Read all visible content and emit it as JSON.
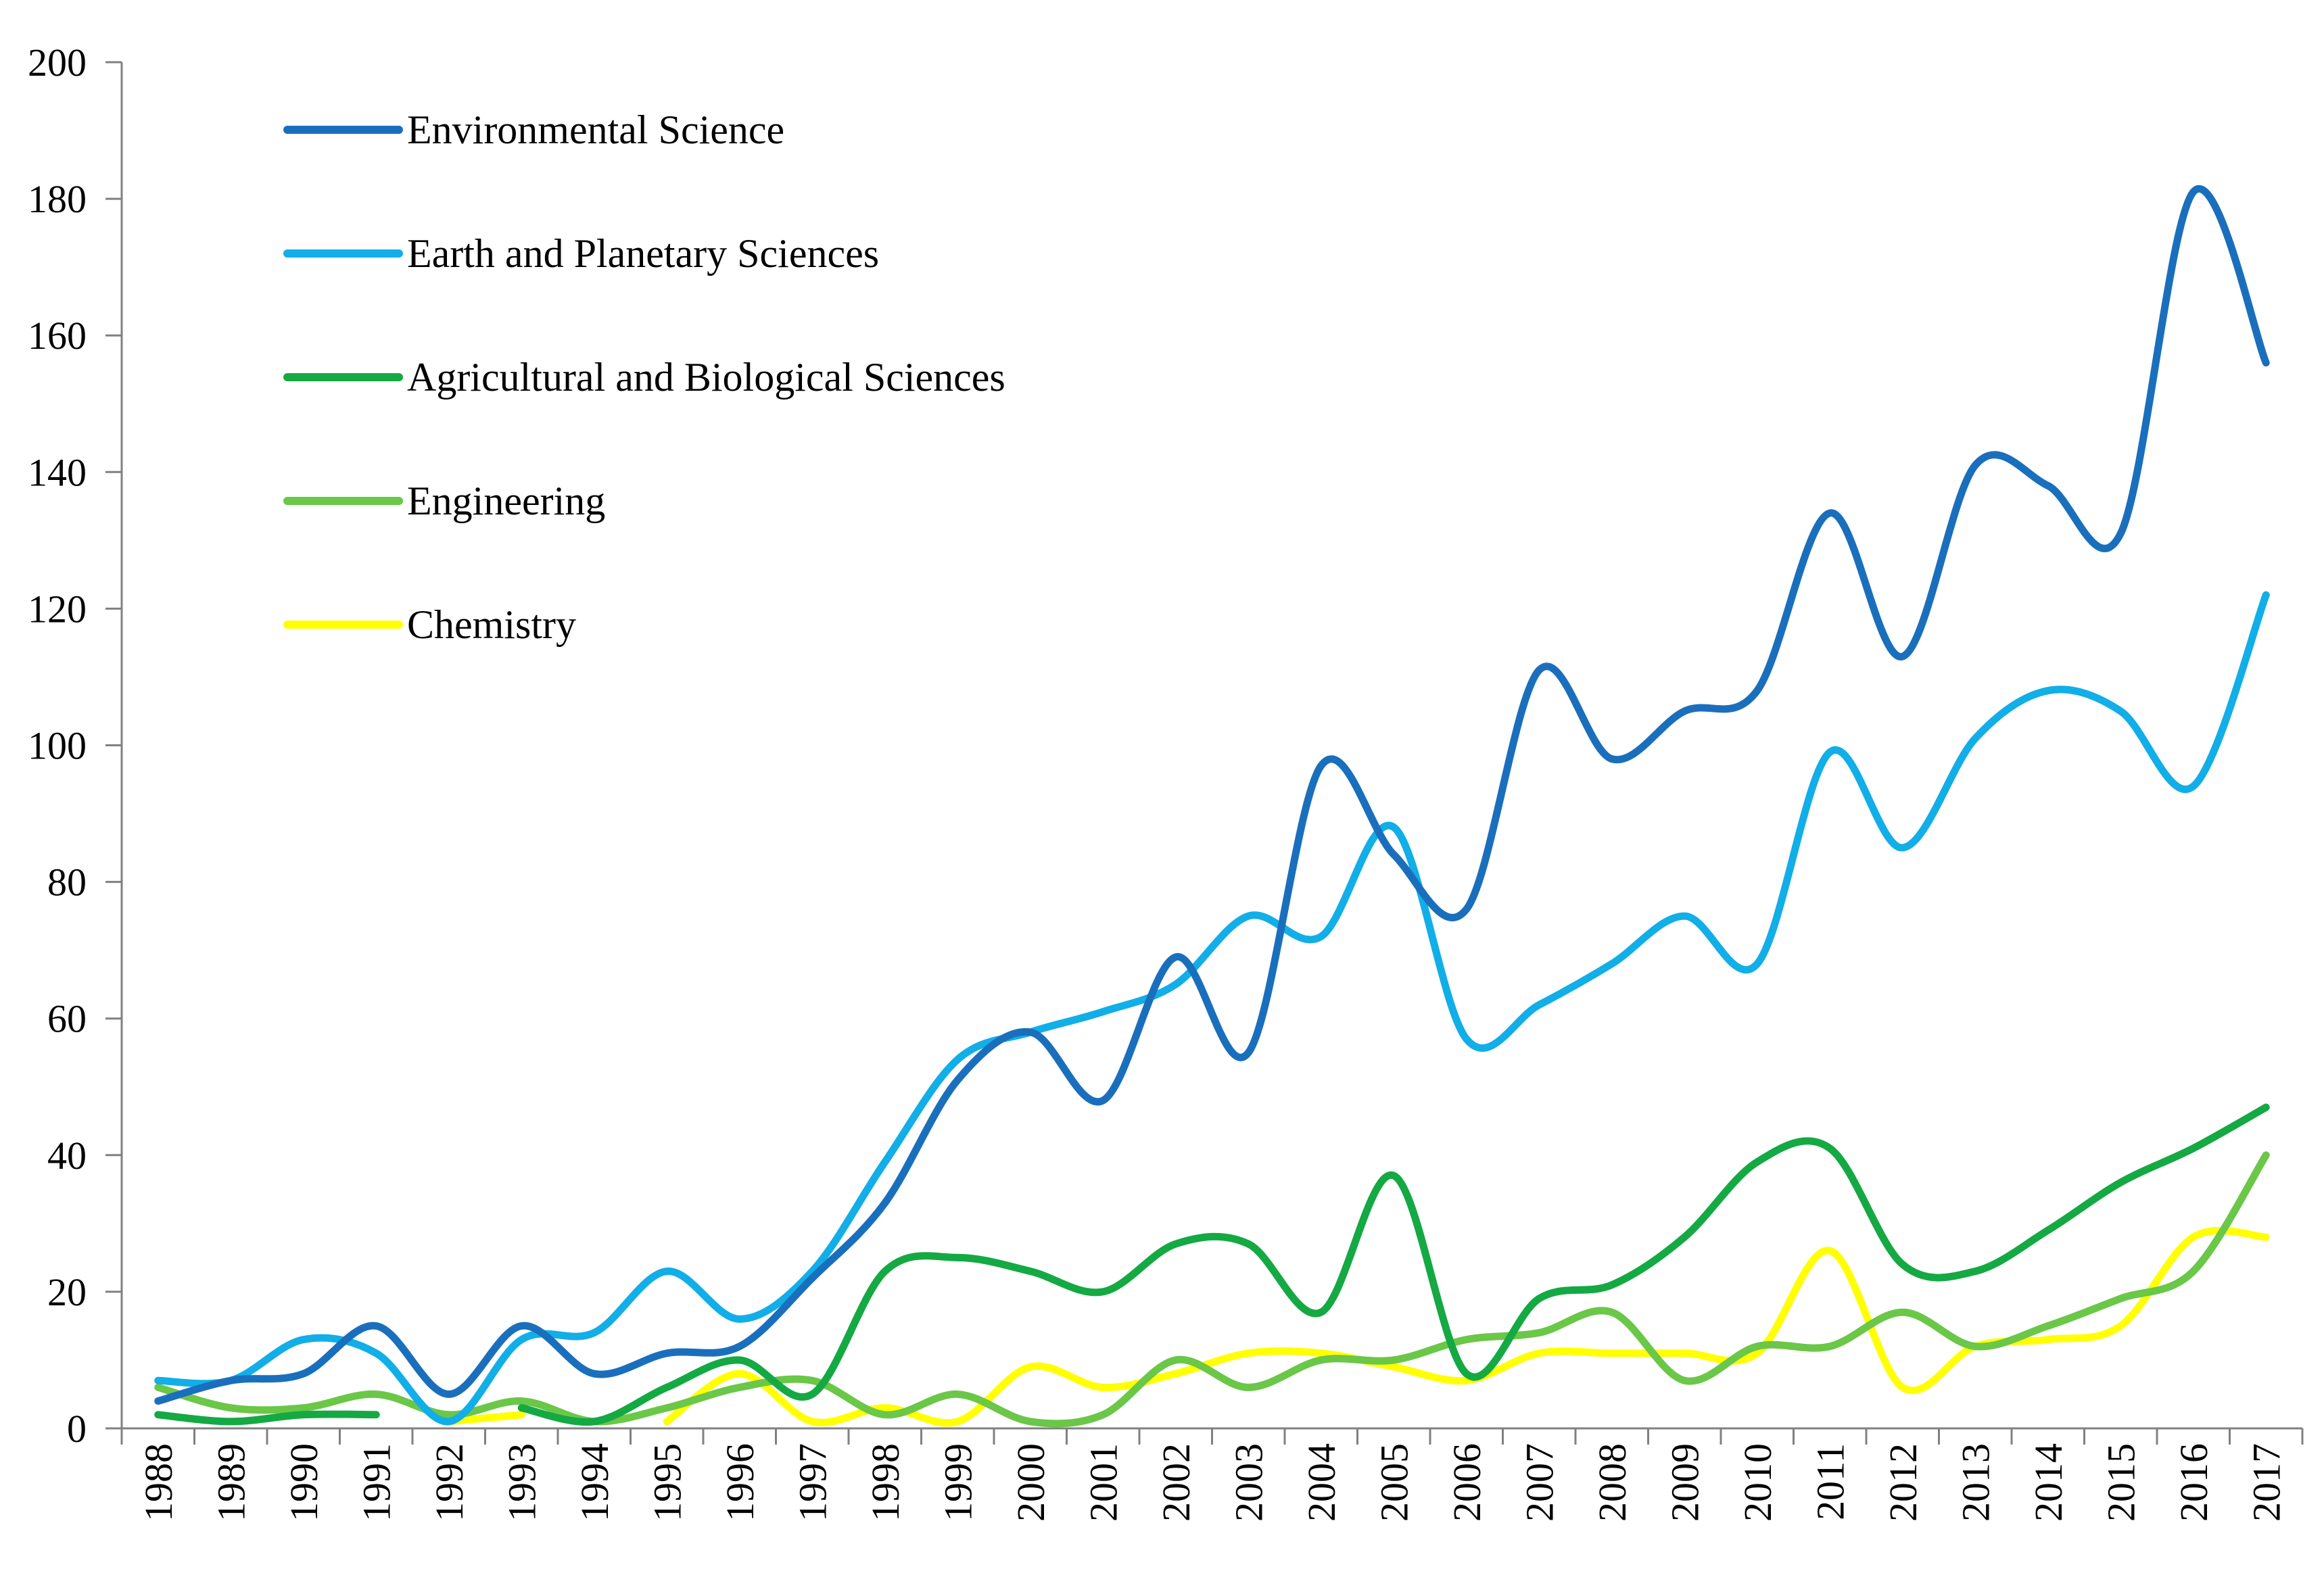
{
  "chart_data": {
    "type": "line",
    "title": "",
    "xlabel": "",
    "ylabel": "",
    "ylim": [
      0,
      200
    ],
    "y_ticks": [
      "0",
      "20",
      "40",
      "60",
      "80",
      "100",
      "120",
      "140",
      "160",
      "180",
      "200"
    ],
    "categories": [
      "1988",
      "1989",
      "1990",
      "1991",
      "1992",
      "1993",
      "1994",
      "1995",
      "1996",
      "1997",
      "1998",
      "1999",
      "2000",
      "2001",
      "2002",
      "2003",
      "2004",
      "2005",
      "2006",
      "2007",
      "2008",
      "2009",
      "2010",
      "2011",
      "2012",
      "2013",
      "2014",
      "2015",
      "2016",
      "2017"
    ],
    "legend_position": "top-left",
    "grid": false,
    "smooth": true,
    "series": [
      {
        "name": "Environmental Science",
        "color": "#1a6fbd",
        "values": [
          4,
          7,
          8,
          15,
          5,
          15,
          8,
          11,
          12,
          22,
          33,
          51,
          58,
          48,
          69,
          55,
          97,
          84,
          76,
          111,
          98,
          105,
          108,
          134,
          113,
          141,
          138,
          131,
          181,
          156
        ]
      },
      {
        "name": "Earth and Planetary Sciences",
        "color": "#11aee8",
        "values": [
          7,
          7,
          13,
          11,
          1,
          13,
          14,
          23,
          16,
          23,
          39,
          54,
          58,
          61,
          65,
          75,
          72,
          88,
          57,
          62,
          68,
          75,
          68,
          99,
          85,
          101,
          108,
          105,
          94,
          122
        ]
      },
      {
        "name": "Agricultural and Biological Sciences",
        "color": "#14a943",
        "values": [
          2,
          1,
          2,
          2,
          null,
          3,
          1,
          6,
          10,
          5,
          23,
          25,
          23,
          20,
          27,
          27,
          17,
          37,
          8,
          19,
          21,
          28,
          39,
          41,
          24,
          23,
          29,
          36,
          41,
          47
        ]
      },
      {
        "name": "Engineering",
        "color": "#6ac747",
        "values": [
          6,
          3,
          3,
          5,
          2,
          4,
          1,
          3,
          6,
          7,
          2,
          5,
          1,
          2,
          10,
          6,
          10,
          10,
          13,
          14,
          17,
          7,
          12,
          12,
          17,
          12,
          15,
          19,
          23,
          40
        ]
      },
      {
        "name": "Chemistry",
        "color": "#ffff00",
        "values": [
          null,
          null,
          null,
          null,
          1,
          2,
          null,
          1,
          8,
          1,
          3,
          1,
          9,
          6,
          8,
          11,
          11,
          9,
          7,
          11,
          11,
          11,
          11,
          26,
          6,
          12,
          13,
          15,
          28,
          28
        ]
      }
    ]
  }
}
